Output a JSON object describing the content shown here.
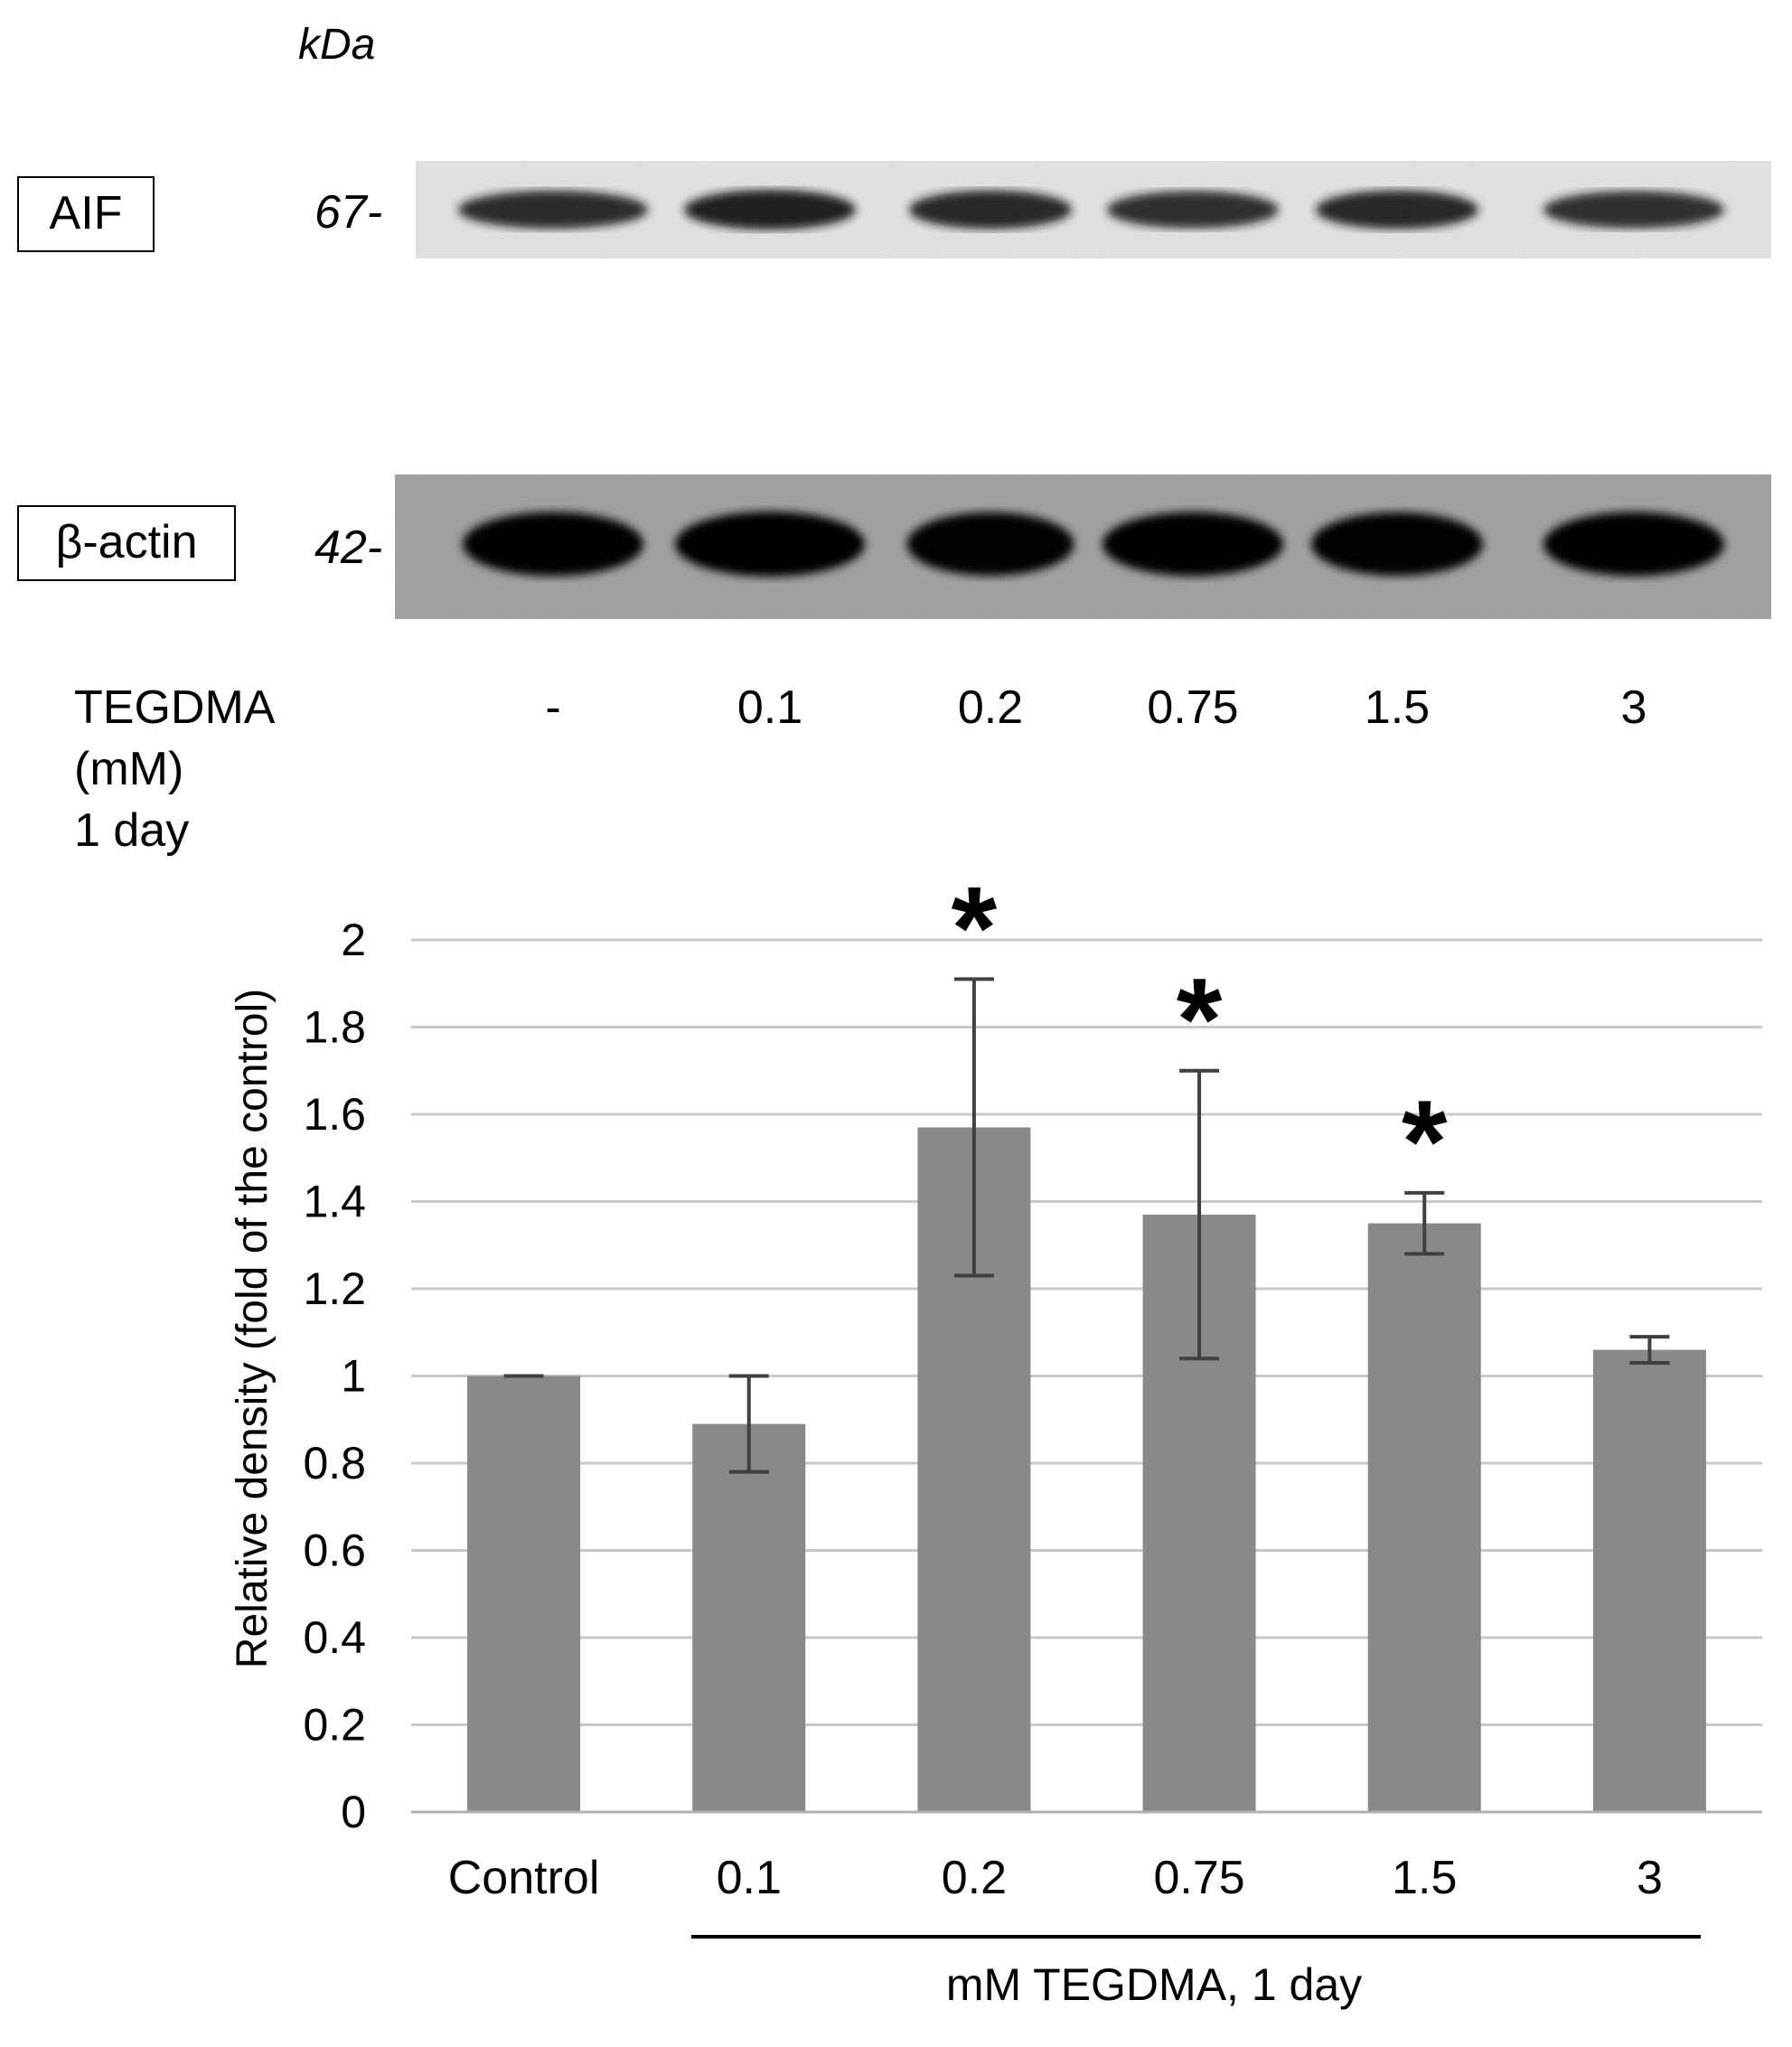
{
  "blot": {
    "kda_label": "kDa",
    "rows": [
      {
        "protein": "AIF",
        "marker": "67-"
      },
      {
        "protein": "β-actin",
        "marker": "42-"
      }
    ],
    "treatment_label": [
      "TEGDMA",
      "(mM)",
      "1 day"
    ],
    "lanes": [
      "-",
      "0.1",
      "0.2",
      "0.75",
      "1.5",
      "3"
    ],
    "band_intensity": {
      "AIF": [
        0.85,
        1.0,
        0.9,
        0.8,
        0.9,
        0.8
      ],
      "beta_actin": [
        0.95,
        1.0,
        0.92,
        0.95,
        0.92,
        0.95
      ]
    }
  },
  "chart_data": {
    "type": "bar",
    "categories": [
      "Control",
      "0.1",
      "0.2",
      "0.75",
      "1.5",
      "3"
    ],
    "values": [
      1.0,
      0.89,
      1.57,
      1.37,
      1.35,
      1.06
    ],
    "errors": [
      0.0,
      0.11,
      0.34,
      0.33,
      0.07,
      0.03
    ],
    "significant": [
      false,
      false,
      true,
      true,
      true,
      false
    ],
    "significance_marker": "*",
    "ylabel": "Relative density  (fold of the control)",
    "xlabel": "mM TEGDMA,  1 day",
    "ylim": [
      0,
      2
    ],
    "yticks": [
      "0",
      "0.2",
      "0.4",
      "0.6",
      "0.8",
      "1",
      "1.2",
      "1.4",
      "1.6",
      "1.8",
      "2"
    ],
    "grid": true,
    "bar_color": "#898989",
    "grid_color": "#c8c8c8",
    "error_color": "#404040"
  }
}
